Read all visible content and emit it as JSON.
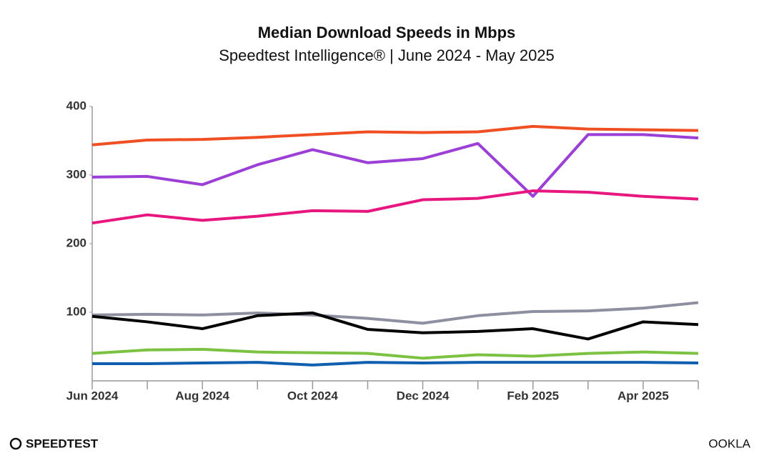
{
  "chart_data": {
    "type": "line",
    "title": "Median Download Speeds in Mbps",
    "subtitle": "Speedtest Intelligence® | June 2024 - May 2025",
    "categories": [
      "Jun 2024",
      null,
      "Aug 2024",
      null,
      "Oct 2024",
      null,
      "Dec 2024",
      null,
      "Feb 2025",
      null,
      "Apr 2025",
      null
    ],
    "series": [
      {
        "color": "#f04e23",
        "values": [
          344,
          351,
          352,
          355,
          359,
          363,
          362,
          363,
          371,
          367,
          366,
          365
        ]
      },
      {
        "color": "#9b3fd6",
        "values": [
          297,
          298,
          286,
          315,
          337,
          318,
          324,
          346,
          269,
          359,
          359,
          354
        ]
      },
      {
        "color": "#e8177f",
        "values": [
          230,
          242,
          234,
          240,
          248,
          247,
          264,
          266,
          277,
          275,
          269,
          265
        ]
      },
      {
        "color": "#8e8fa0",
        "values": [
          96,
          97,
          96,
          99,
          96,
          91,
          84,
          95,
          101,
          102,
          106,
          114
        ]
      },
      {
        "color": "#000000",
        "values": [
          94,
          86,
          76,
          95,
          99,
          75,
          70,
          72,
          76,
          61,
          86,
          82
        ]
      },
      {
        "color": "#7cc242",
        "values": [
          40,
          45,
          46,
          42,
          41,
          40,
          33,
          38,
          36,
          40,
          42,
          40
        ]
      },
      {
        "color": "#0f5fae",
        "values": [
          25,
          25,
          26,
          27,
          23,
          27,
          26,
          27,
          27,
          27,
          27,
          26
        ]
      }
    ],
    "ylim": [
      0,
      400
    ],
    "yticks": [
      100,
      200,
      300,
      400
    ],
    "grid": false
  },
  "footer": {
    "left": "SPEEDTEST",
    "right": "OOKLA"
  }
}
